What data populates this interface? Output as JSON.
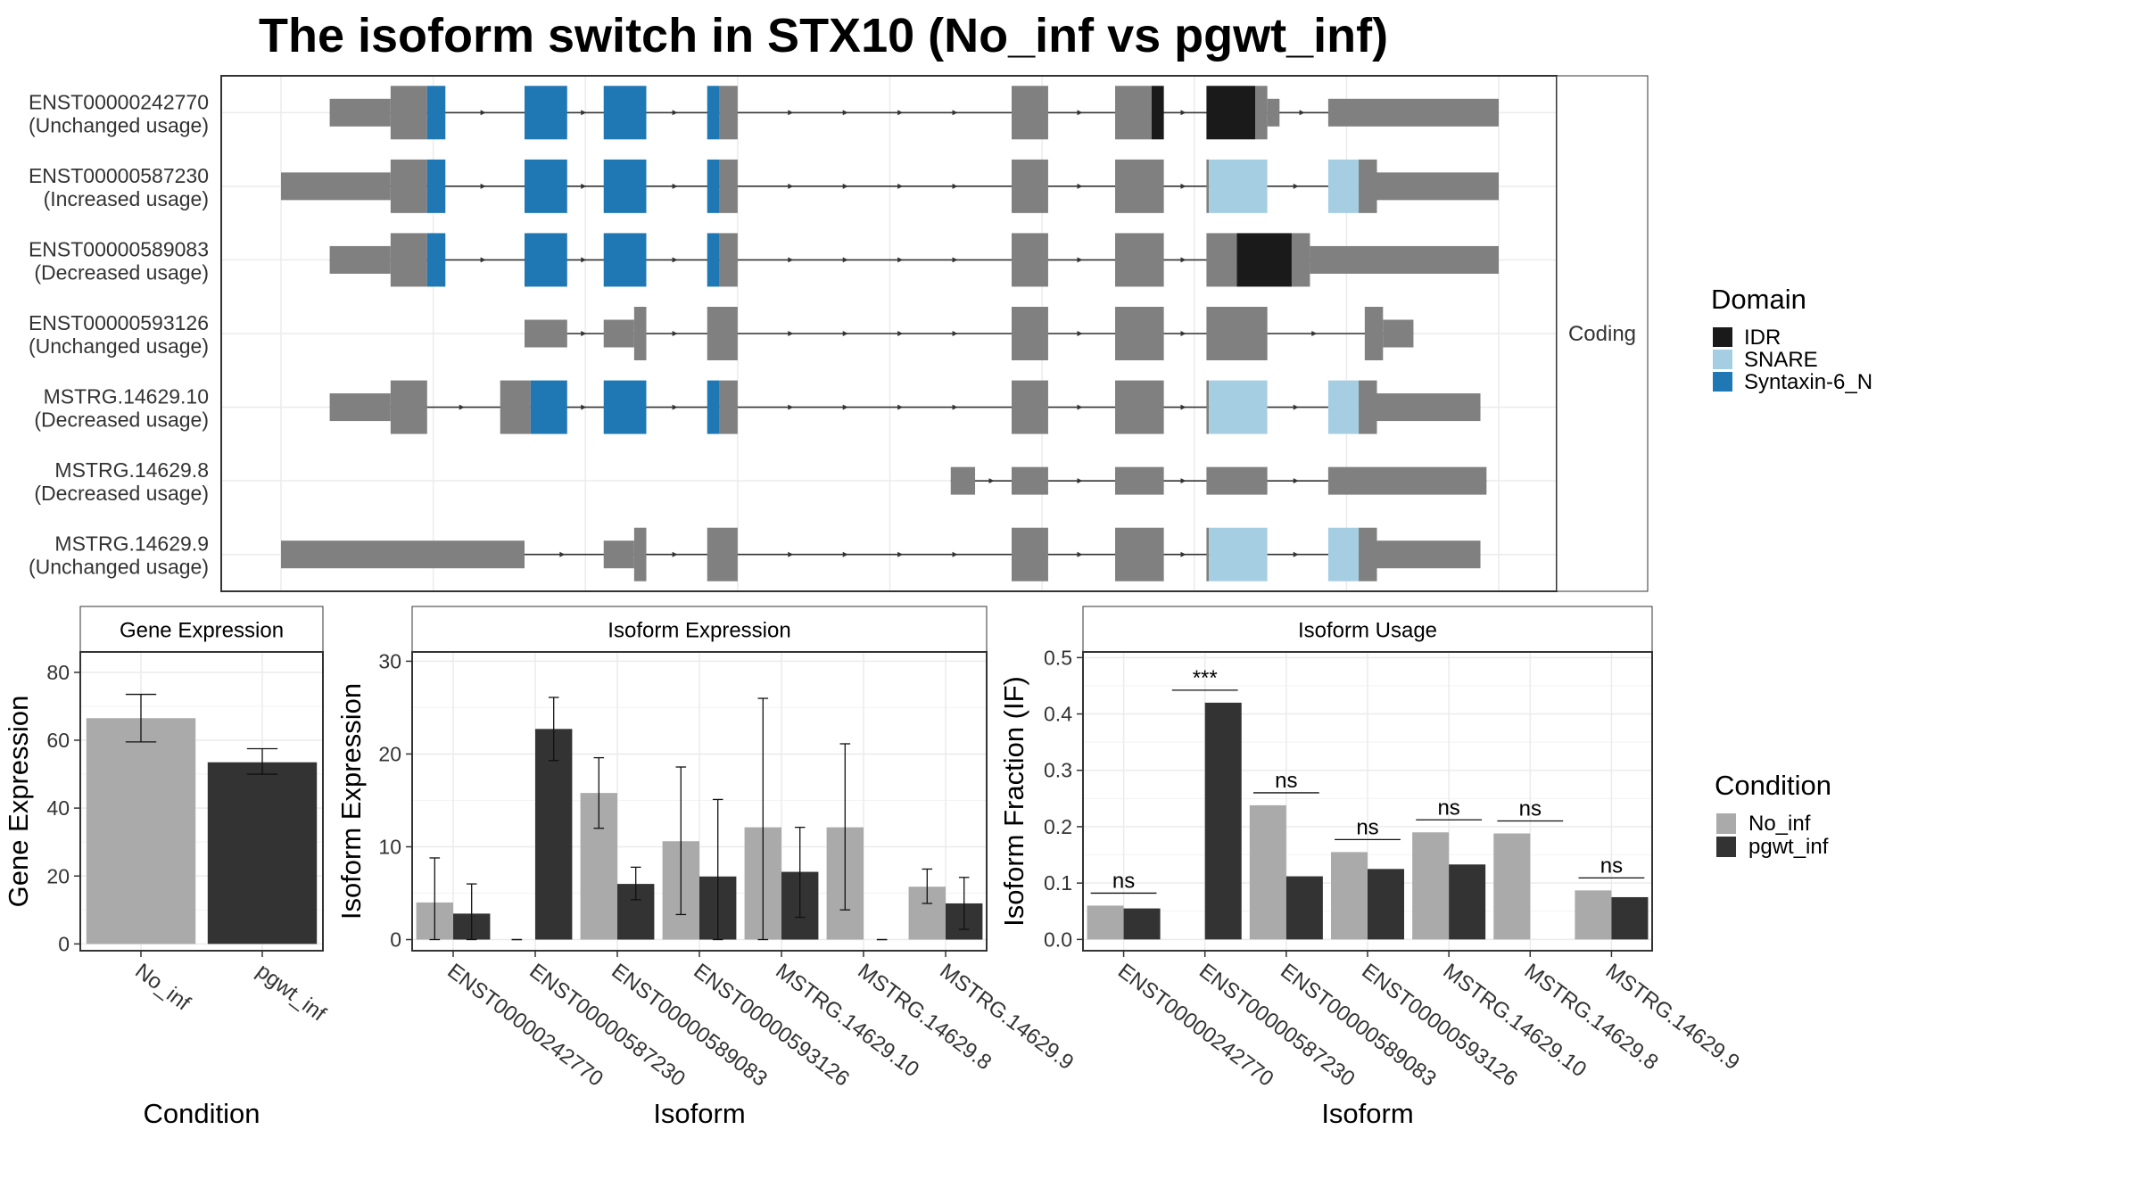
{
  "title": "The isoform switch in STX10 (No_inf vs pgwt_inf)",
  "chart_data": [
    {
      "type": "gene-structure",
      "facet_label": "Coding",
      "legend": {
        "title": "Domain",
        "entries": [
          {
            "name": "IDR",
            "color": "#1a1a1a"
          },
          {
            "name": "SNARE",
            "color": "#a6cee3"
          },
          {
            "name": "Syntaxin-6_N",
            "color": "#1f78b4"
          }
        ]
      },
      "transcripts": [
        {
          "id": "ENST00000242770",
          "usage": "(Unchanged usage)",
          "segments": [
            [
              0.04,
              0.09,
              "utr"
            ],
            [
              0.09,
              0.12,
              "cds"
            ],
            [
              0.12,
              0.135,
              "Syntaxin-6_N"
            ],
            [
              0.2,
              0.235,
              "Syntaxin-6_N"
            ],
            [
              0.265,
              0.3,
              "Syntaxin-6_N"
            ],
            [
              0.35,
              0.36,
              "Syntaxin-6_N"
            ],
            [
              0.36,
              0.375,
              "cds"
            ],
            [
              0.6,
              0.63,
              "cds"
            ],
            [
              0.685,
              0.715,
              "cds"
            ],
            [
              0.715,
              0.725,
              "IDR"
            ],
            [
              0.76,
              0.8,
              "IDR"
            ],
            [
              0.8,
              0.81,
              "cds"
            ],
            [
              0.81,
              0.82,
              "utr"
            ],
            [
              0.86,
              1.0,
              "utr"
            ]
          ]
        },
        {
          "id": "ENST00000587230",
          "usage": "(Increased usage)",
          "segments": [
            [
              0.0,
              0.09,
              "utr"
            ],
            [
              0.09,
              0.12,
              "cds"
            ],
            [
              0.12,
              0.135,
              "Syntaxin-6_N"
            ],
            [
              0.2,
              0.235,
              "Syntaxin-6_N"
            ],
            [
              0.265,
              0.3,
              "Syntaxin-6_N"
            ],
            [
              0.35,
              0.36,
              "Syntaxin-6_N"
            ],
            [
              0.36,
              0.375,
              "cds"
            ],
            [
              0.6,
              0.63,
              "cds"
            ],
            [
              0.685,
              0.725,
              "cds"
            ],
            [
              0.76,
              0.762,
              "cds"
            ],
            [
              0.762,
              0.81,
              "SNARE"
            ],
            [
              0.86,
              0.885,
              "SNARE"
            ],
            [
              0.885,
              0.9,
              "cds"
            ],
            [
              0.9,
              1.0,
              "utr"
            ]
          ]
        },
        {
          "id": "ENST00000589083",
          "usage": "(Decreased usage)",
          "segments": [
            [
              0.04,
              0.09,
              "utr"
            ],
            [
              0.09,
              0.12,
              "cds"
            ],
            [
              0.12,
              0.135,
              "Syntaxin-6_N"
            ],
            [
              0.2,
              0.235,
              "Syntaxin-6_N"
            ],
            [
              0.265,
              0.3,
              "Syntaxin-6_N"
            ],
            [
              0.35,
              0.36,
              "Syntaxin-6_N"
            ],
            [
              0.36,
              0.375,
              "cds"
            ],
            [
              0.6,
              0.63,
              "cds"
            ],
            [
              0.685,
              0.725,
              "cds"
            ],
            [
              0.76,
              0.785,
              "cds"
            ],
            [
              0.785,
              0.83,
              "IDR"
            ],
            [
              0.83,
              0.845,
              "cds"
            ],
            [
              0.845,
              1.0,
              "utr"
            ]
          ]
        },
        {
          "id": "ENST00000593126",
          "usage": "(Unchanged usage)",
          "segments": [
            [
              0.2,
              0.235,
              "utr"
            ],
            [
              0.265,
              0.29,
              "utr"
            ],
            [
              0.29,
              0.3,
              "cds"
            ],
            [
              0.35,
              0.375,
              "cds"
            ],
            [
              0.6,
              0.63,
              "cds"
            ],
            [
              0.685,
              0.725,
              "cds"
            ],
            [
              0.76,
              0.81,
              "cds"
            ],
            [
              0.89,
              0.905,
              "cds"
            ],
            [
              0.905,
              0.93,
              "utr"
            ]
          ]
        },
        {
          "id": "MSTRG.14629.10",
          "usage": "(Decreased usage)",
          "segments": [
            [
              0.04,
              0.09,
              "utr"
            ],
            [
              0.09,
              0.12,
              "cds"
            ],
            [
              0.18,
              0.205,
              "cds"
            ],
            [
              0.205,
              0.235,
              "Syntaxin-6_N"
            ],
            [
              0.265,
              0.3,
              "Syntaxin-6_N"
            ],
            [
              0.35,
              0.36,
              "Syntaxin-6_N"
            ],
            [
              0.36,
              0.375,
              "cds"
            ],
            [
              0.6,
              0.63,
              "cds"
            ],
            [
              0.685,
              0.725,
              "cds"
            ],
            [
              0.76,
              0.762,
              "cds"
            ],
            [
              0.762,
              0.81,
              "SNARE"
            ],
            [
              0.86,
              0.885,
              "SNARE"
            ],
            [
              0.885,
              0.9,
              "cds"
            ],
            [
              0.9,
              0.985,
              "utr"
            ]
          ]
        },
        {
          "id": "MSTRG.14629.8",
          "usage": "(Decreased usage)",
          "segments": [
            [
              0.55,
              0.57,
              "utr"
            ],
            [
              0.6,
              0.63,
              "utr"
            ],
            [
              0.685,
              0.725,
              "utr"
            ],
            [
              0.76,
              0.81,
              "utr"
            ],
            [
              0.86,
              0.99,
              "utr"
            ]
          ]
        },
        {
          "id": "MSTRG.14629.9",
          "usage": "(Unchanged usage)",
          "segments": [
            [
              0.0,
              0.2,
              "utr"
            ],
            [
              0.265,
              0.29,
              "utr"
            ],
            [
              0.29,
              0.3,
              "cds"
            ],
            [
              0.35,
              0.375,
              "cds"
            ],
            [
              0.6,
              0.63,
              "cds"
            ],
            [
              0.685,
              0.725,
              "cds"
            ],
            [
              0.76,
              0.762,
              "cds"
            ],
            [
              0.762,
              0.81,
              "SNARE"
            ],
            [
              0.86,
              0.885,
              "SNARE"
            ],
            [
              0.885,
              0.9,
              "cds"
            ],
            [
              0.9,
              0.985,
              "utr"
            ]
          ]
        }
      ]
    },
    {
      "type": "bar",
      "panel": "Gene Expression",
      "categories": [
        "No_inf",
        "pgwt_inf"
      ],
      "values": [
        66.5,
        53.5
      ],
      "errors": [
        [
          59.5,
          73.5
        ],
        [
          50.0,
          57.5
        ]
      ],
      "colors": [
        "#aaaaaa",
        "#333333"
      ],
      "xlabel": "Condition",
      "ylabel": "Gene Expression",
      "ylim": [
        -2,
        86
      ],
      "yticks": [
        0,
        20,
        40,
        60,
        80
      ]
    },
    {
      "type": "bar",
      "panel": "Isoform Expression",
      "categories": [
        "ENST00000242770",
        "ENST00000587230",
        "ENST00000589083",
        "ENST00000593126",
        "MSTRG.14629.10",
        "MSTRG.14629.8",
        "MSTRG.14629.9"
      ],
      "series": [
        {
          "name": "No_inf",
          "color": "#aaaaaa",
          "values": [
            4.0,
            0.0,
            15.8,
            10.6,
            12.1,
            12.1,
            5.7
          ],
          "errors": [
            [
              0.0,
              8.8
            ],
            [
              0.0,
              0.0
            ],
            [
              12.0,
              19.6
            ],
            [
              2.7,
              18.6
            ],
            [
              0.0,
              26.0
            ],
            [
              3.2,
              21.1
            ],
            [
              3.9,
              7.6
            ]
          ]
        },
        {
          "name": "pgwt_inf",
          "color": "#333333",
          "values": [
            2.8,
            22.7,
            6.0,
            6.8,
            7.3,
            0.0,
            3.9
          ],
          "errors": [
            [
              0.0,
              6.0
            ],
            [
              19.3,
              26.1
            ],
            [
              4.3,
              7.8
            ],
            [
              0.0,
              15.1
            ],
            [
              2.4,
              12.1
            ],
            [
              0.0,
              0.0
            ],
            [
              1.1,
              6.7
            ]
          ]
        }
      ],
      "xlabel": "Isoform",
      "ylabel": "Isoform Expression",
      "ylim": [
        -1.2,
        31
      ],
      "yticks": [
        0,
        10,
        20,
        30
      ]
    },
    {
      "type": "bar",
      "panel": "Isoform Usage",
      "categories": [
        "ENST00000242770",
        "ENST00000587230",
        "ENST00000589083",
        "ENST00000593126",
        "MSTRG.14629.10",
        "MSTRG.14629.8",
        "MSTRG.14629.9"
      ],
      "series": [
        {
          "name": "No_inf",
          "color": "#aaaaaa",
          "values": [
            0.06,
            0.0,
            0.238,
            0.155,
            0.19,
            0.188,
            0.087
          ]
        },
        {
          "name": "pgwt_inf",
          "color": "#333333",
          "values": [
            0.055,
            0.42,
            0.112,
            0.125,
            0.133,
            0.0,
            0.075
          ]
        }
      ],
      "significance": [
        "ns",
        "***",
        "ns",
        "ns",
        "ns",
        "ns",
        "ns"
      ],
      "xlabel": "Isoform",
      "ylabel": "Isoform Fraction (IF)",
      "ylim": [
        -0.02,
        0.51
      ],
      "yticks": [
        0.0,
        0.1,
        0.2,
        0.3,
        0.4,
        0.5
      ],
      "ytick_labels": [
        "0.0",
        "0.1",
        "0.2",
        "0.3",
        "0.4",
        "0.5"
      ]
    }
  ],
  "condition_legend": {
    "title": "Condition",
    "entries": [
      {
        "name": "No_inf",
        "color": "#aaaaaa"
      },
      {
        "name": "pgwt_inf",
        "color": "#333333"
      }
    ]
  },
  "colors": {
    "utr": "#808080",
    "cds": "#808080",
    "grid": "#ebebeb",
    "panel_border": "#333333",
    "strip_bg": "#ffffff"
  }
}
